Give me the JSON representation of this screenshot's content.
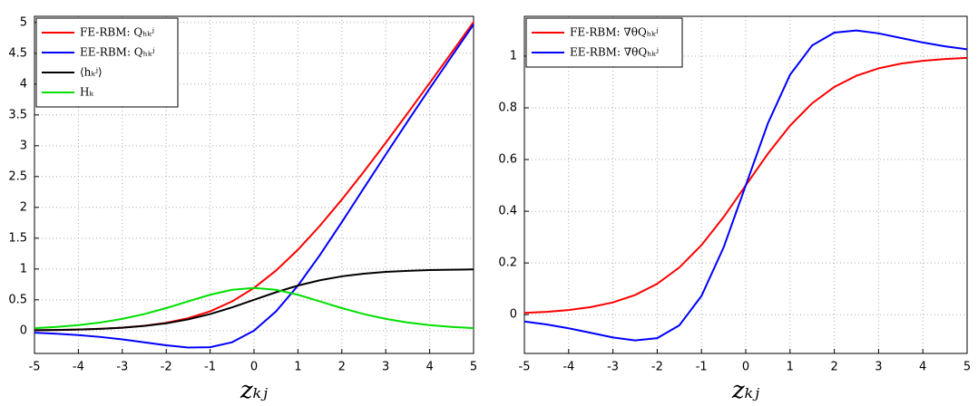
{
  "chart_data": [
    {
      "type": "line",
      "x_label": "zₖⱼ",
      "x": [
        -5,
        -4.5,
        -4,
        -3.5,
        -3,
        -2.5,
        -2,
        -1.5,
        -1,
        -0.5,
        0,
        0.5,
        1,
        1.5,
        2,
        2.5,
        3,
        3.5,
        4,
        4.5,
        5
      ],
      "xlim": [
        -5,
        5
      ],
      "xticks": [
        -5,
        -4,
        -3,
        -2,
        -1,
        0,
        1,
        2,
        3,
        4,
        5
      ],
      "ylim": [
        -0.37,
        5.1
      ],
      "yticks": [
        0,
        0.5,
        1,
        1.5,
        2,
        2.5,
        3,
        3.5,
        4,
        4.5,
        5
      ],
      "grid": true,
      "legend": "upper left",
      "series": [
        {
          "name": "FE-RBM: Qₕₖʲ",
          "color": "#ff0000",
          "values": [
            0.0067,
            0.0111,
            0.0182,
            0.0298,
            0.0486,
            0.0789,
            0.1269,
            0.2014,
            0.3133,
            0.4741,
            0.6931,
            0.9741,
            1.3133,
            1.7014,
            2.1269,
            2.5789,
            3.0486,
            3.5298,
            4.0182,
            4.5111,
            5.0067
          ]
        },
        {
          "name": "EE-RBM: Qₕₖʲ",
          "color": "#0000ff",
          "values": [
            -0.0335,
            -0.0495,
            -0.072,
            -0.1026,
            -0.1423,
            -0.1897,
            -0.2384,
            -0.2736,
            -0.2689,
            -0.1888,
            0,
            0.3112,
            0.7311,
            1.2264,
            1.7616,
            2.3103,
            2.8577,
            3.3974,
            3.928,
            4.4505,
            4.9665
          ]
        },
        {
          "name": "⟨hₖʲ⟩",
          "color": "#000000",
          "values": [
            0.0067,
            0.011,
            0.018,
            0.0293,
            0.0474,
            0.0759,
            0.1192,
            0.1824,
            0.2689,
            0.3775,
            0.5,
            0.6225,
            0.7311,
            0.8176,
            0.8808,
            0.9241,
            0.9526,
            0.9707,
            0.982,
            0.989,
            0.9933
          ]
        },
        {
          "name": "Hₖ",
          "color": "#00e000",
          "values": [
            0.0402,
            0.0605,
            0.0901,
            0.1324,
            0.1909,
            0.2686,
            0.3653,
            0.475,
            0.5822,
            0.6629,
            0.6931,
            0.6629,
            0.5822,
            0.475,
            0.3653,
            0.2686,
            0.1909,
            0.1324,
            0.0901,
            0.0605,
            0.0402
          ]
        }
      ]
    },
    {
      "type": "line",
      "x_label": "zₖⱼ",
      "x": [
        -5,
        -4.5,
        -4,
        -3.5,
        -3,
        -2.5,
        -2,
        -1.5,
        -1,
        -0.5,
        0,
        0.5,
        1,
        1.5,
        2,
        2.5,
        3,
        3.5,
        4,
        4.5,
        5
      ],
      "xlim": [
        -5,
        5
      ],
      "xticks": [
        -5,
        -4,
        -3,
        -2,
        -1,
        0,
        1,
        2,
        3,
        4,
        5
      ],
      "ylim": [
        -0.15,
        1.154
      ],
      "yticks": [
        0,
        0.2,
        0.4,
        0.6,
        0.8,
        1
      ],
      "grid": true,
      "legend": "upper left",
      "series": [
        {
          "name": "FE-RBM: ∇θQₕₖʲ",
          "color": "#ff0000",
          "values": [
            0.0067,
            0.011,
            0.018,
            0.0293,
            0.0474,
            0.0759,
            0.1192,
            0.1824,
            0.2689,
            0.3775,
            0.5,
            0.6225,
            0.7311,
            0.8176,
            0.8808,
            0.9241,
            0.9526,
            0.9707,
            0.982,
            0.989,
            0.9933
          ]
        },
        {
          "name": "EE-RBM: ∇θQₕₖʲ",
          "color": "#0000ff",
          "values": [
            -0.0265,
            -0.0379,
            -0.0527,
            -0.0703,
            -0.0881,
            -0.0994,
            -0.0908,
            -0.0413,
            0.0723,
            0.26,
            0.5,
            0.74,
            0.9277,
            1.0413,
            1.0908,
            1.0994,
            1.0881,
            1.0703,
            1.0527,
            1.0379,
            1.0265
          ]
        }
      ]
    }
  ]
}
